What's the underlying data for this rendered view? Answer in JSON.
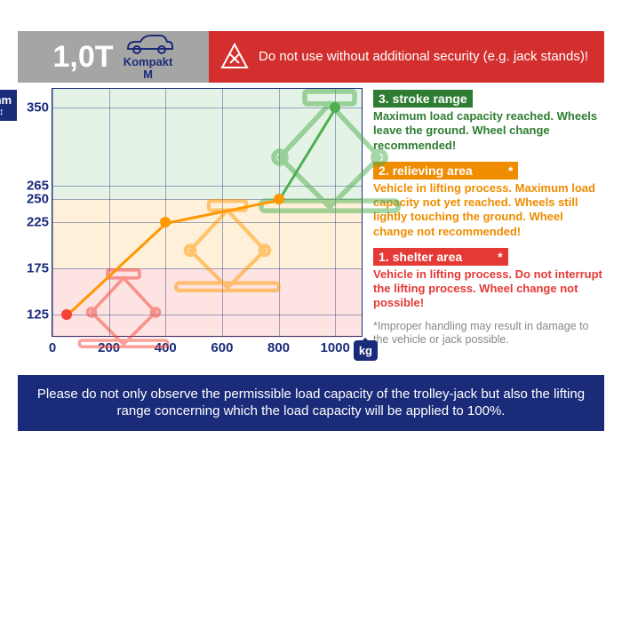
{
  "header": {
    "weight": "1,0T",
    "vehicle_line1": "Kompakt",
    "vehicle_line2": "M",
    "warning": "Do not use without additional security (e.g. jack stands)!"
  },
  "axes": {
    "mm_label": "mm",
    "kg_label": "kg",
    "y_ticks": [
      350,
      265,
      250,
      225,
      175,
      125
    ],
    "x_ticks": [
      0,
      200,
      400,
      600,
      800,
      1000
    ],
    "y_max": 370,
    "y_min": 100,
    "x_max": 1100,
    "x_min": 0
  },
  "zones": {
    "green": {
      "from_mm": 250,
      "to_mm": 370,
      "color": "#4caf50"
    },
    "orange": {
      "from_mm": 175,
      "to_mm": 250,
      "color": "#ff9800"
    },
    "red": {
      "from_mm": 100,
      "to_mm": 175,
      "color": "#f44336"
    }
  },
  "series": [
    {
      "x": 50,
      "y": 125,
      "color": "#f44336"
    },
    {
      "x": 400,
      "y": 225,
      "color": "#ff9800"
    },
    {
      "x": 800,
      "y": 250,
      "color": "#ff9800"
    },
    {
      "x": 1000,
      "y": 350,
      "color": "#4caf50"
    }
  ],
  "legend": {
    "stroke": {
      "title": "3. stroke range",
      "body": "Maximum load capacity reached. Wheels leave the ground. Wheel change recommended!",
      "color": "#2e7d32",
      "bg": "#2e7d32"
    },
    "relieving": {
      "title": "2. relieving area",
      "body": "Vehicle in lifting process. Maximum load capacity not yet reached. Wheels still lightly touching the ground. Wheel change not recommended!",
      "color": "#ef8c00",
      "bg": "#ef8c00"
    },
    "shelter": {
      "title": "1. shelter area",
      "body": "Vehicle in lifting process. Do not interrupt the lifting process. Wheel change not possible!",
      "color": "#e53935",
      "bg": "#e53935"
    },
    "disclaimer": "*Improper handling may result in damage to the vehicle or jack possible."
  },
  "footer": "Please do not only observe the permissible load capacity of the trolley-jack but also the lifting range concerning which the load capacity will be applied to 100%.",
  "colors": {
    "navy": "#1a2b7a",
    "grey": "#a5a5a5",
    "red": "#d32f2f"
  }
}
